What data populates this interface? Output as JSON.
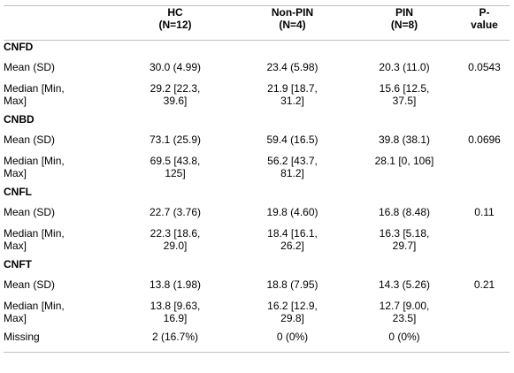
{
  "header": {
    "blank": "",
    "hc": "HC",
    "hc_n": "(N=12)",
    "nonpin": "Non-PIN",
    "nonpin_n": "(N=4)",
    "pin": "PIN",
    "pin_n": "(N=8)",
    "p": "P-",
    "p2": "value"
  },
  "sections": [
    {
      "title": "CNFD",
      "mean_label": "Mean (SD)",
      "mean": [
        "30.0 (4.99)",
        "23.4 (5.98)",
        "20.3 (11.0)"
      ],
      "p": "0.0543",
      "median_label_1": "Median [Min,",
      "median_label_2": "Max]",
      "median_1": [
        "29.2 [22.3,",
        "21.9 [18.7,",
        "15.6 [12.5,"
      ],
      "median_2": [
        "39.6]",
        "31.2]",
        "37.5]"
      ]
    },
    {
      "title": "CNBD",
      "mean_label": "Mean (SD)",
      "mean": [
        "73.1 (25.9)",
        "59.4 (16.5)",
        "39.8 (38.1)"
      ],
      "p": "0.0696",
      "median_label_1": "Median [Min,",
      "median_label_2": "Max]",
      "median_1": [
        "69.5 [43.8,",
        "56.2 [43.7,",
        "28.1 [0, 106]"
      ],
      "median_2": [
        "125]",
        "81.2]",
        ""
      ]
    },
    {
      "title": "CNFL",
      "mean_label": "Mean (SD)",
      "mean": [
        "22.7 (3.76)",
        "19.8 (4.60)",
        "16.8 (8.48)"
      ],
      "p": "0.11",
      "median_label_1": "Median [Min,",
      "median_label_2": "Max]",
      "median_1": [
        "22.3 [18.6,",
        "18.4 [16.1,",
        "16.3 [5.18,"
      ],
      "median_2": [
        "29.0]",
        "26.2]",
        "29.7]"
      ]
    },
    {
      "title": "CNFT",
      "mean_label": "Mean (SD)",
      "mean": [
        "13.8 (1.98)",
        "18.8 (7.95)",
        "14.3 (5.26)"
      ],
      "p": "0.21",
      "median_label_1": "Median [Min,",
      "median_label_2": "Max]",
      "median_1": [
        "13.8 [9.63,",
        "16.2 [12.9,",
        "12.7 [9.00,"
      ],
      "median_2": [
        "16.9]",
        "29.8]",
        "23.5]"
      ],
      "missing_label": "Missing",
      "missing": [
        "2 (16.7%)",
        "0 (0%)",
        "0 (0%)"
      ]
    }
  ]
}
